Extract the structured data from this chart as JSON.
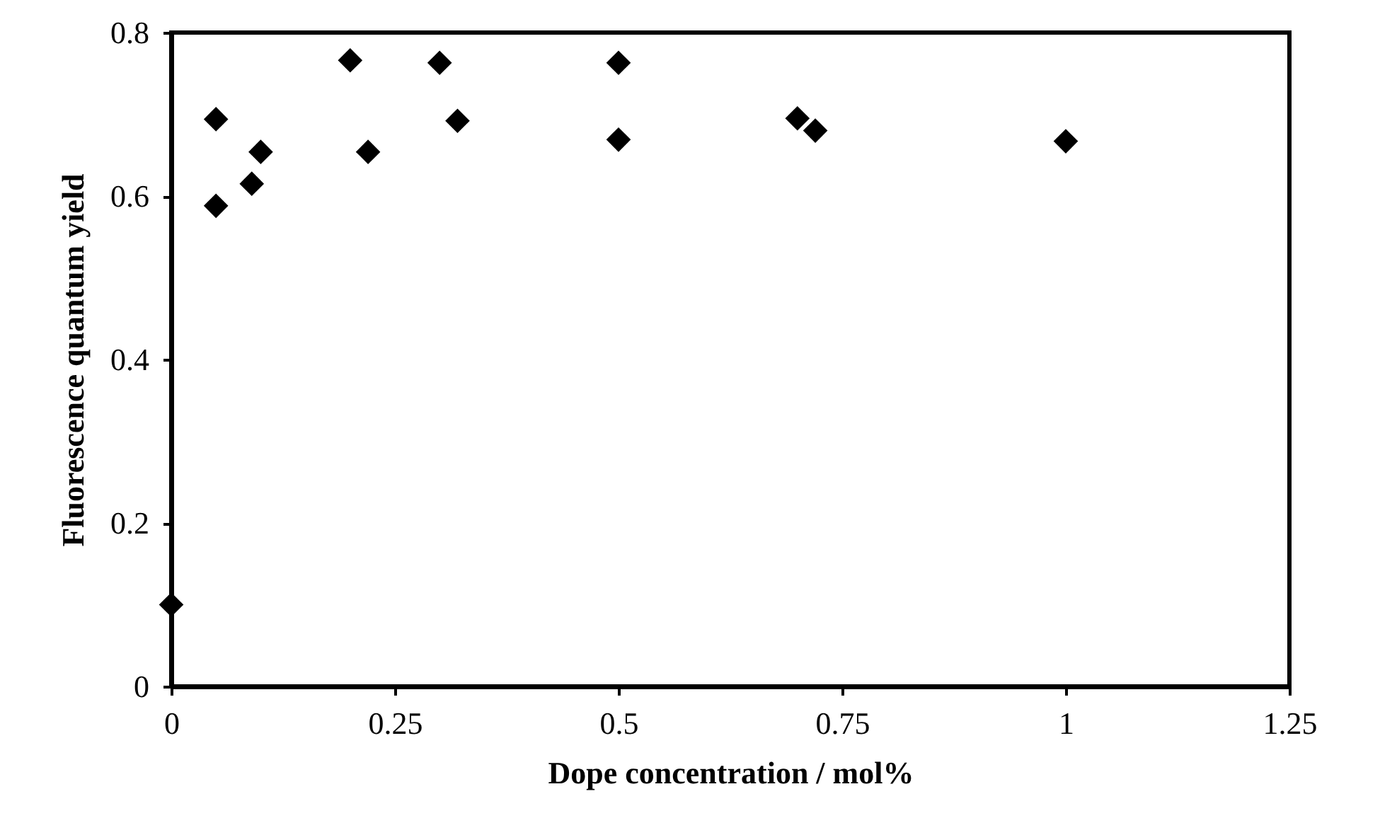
{
  "chart_data": {
    "type": "scatter",
    "xlabel": "Dope concentration / mol%",
    "ylabel": "Fluorescence quantum yield",
    "series": [
      {
        "color": "#000000",
        "marker": "diamond",
        "x": [
          0,
          0.05,
          0.05,
          0.09,
          0.1,
          0.2,
          0.22,
          0.3,
          0.32,
          0.5,
          0.5,
          0.7,
          0.72,
          1
        ],
        "values": [
          0.1,
          0.694,
          0.588,
          0.615,
          0.654,
          0.766,
          0.654,
          0.763,
          0.692,
          0.763,
          0.669,
          0.695,
          0.68,
          0.667
        ]
      }
    ],
    "xlim": [
      0,
      1.25
    ],
    "xticks": [
      0,
      0.25,
      0.5,
      0.75,
      1,
      1.25
    ],
    "ylim": [
      0,
      0.8
    ],
    "yticks": [
      0,
      0.2,
      0.4,
      0.6,
      0.8
    ],
    "grid": false
  }
}
